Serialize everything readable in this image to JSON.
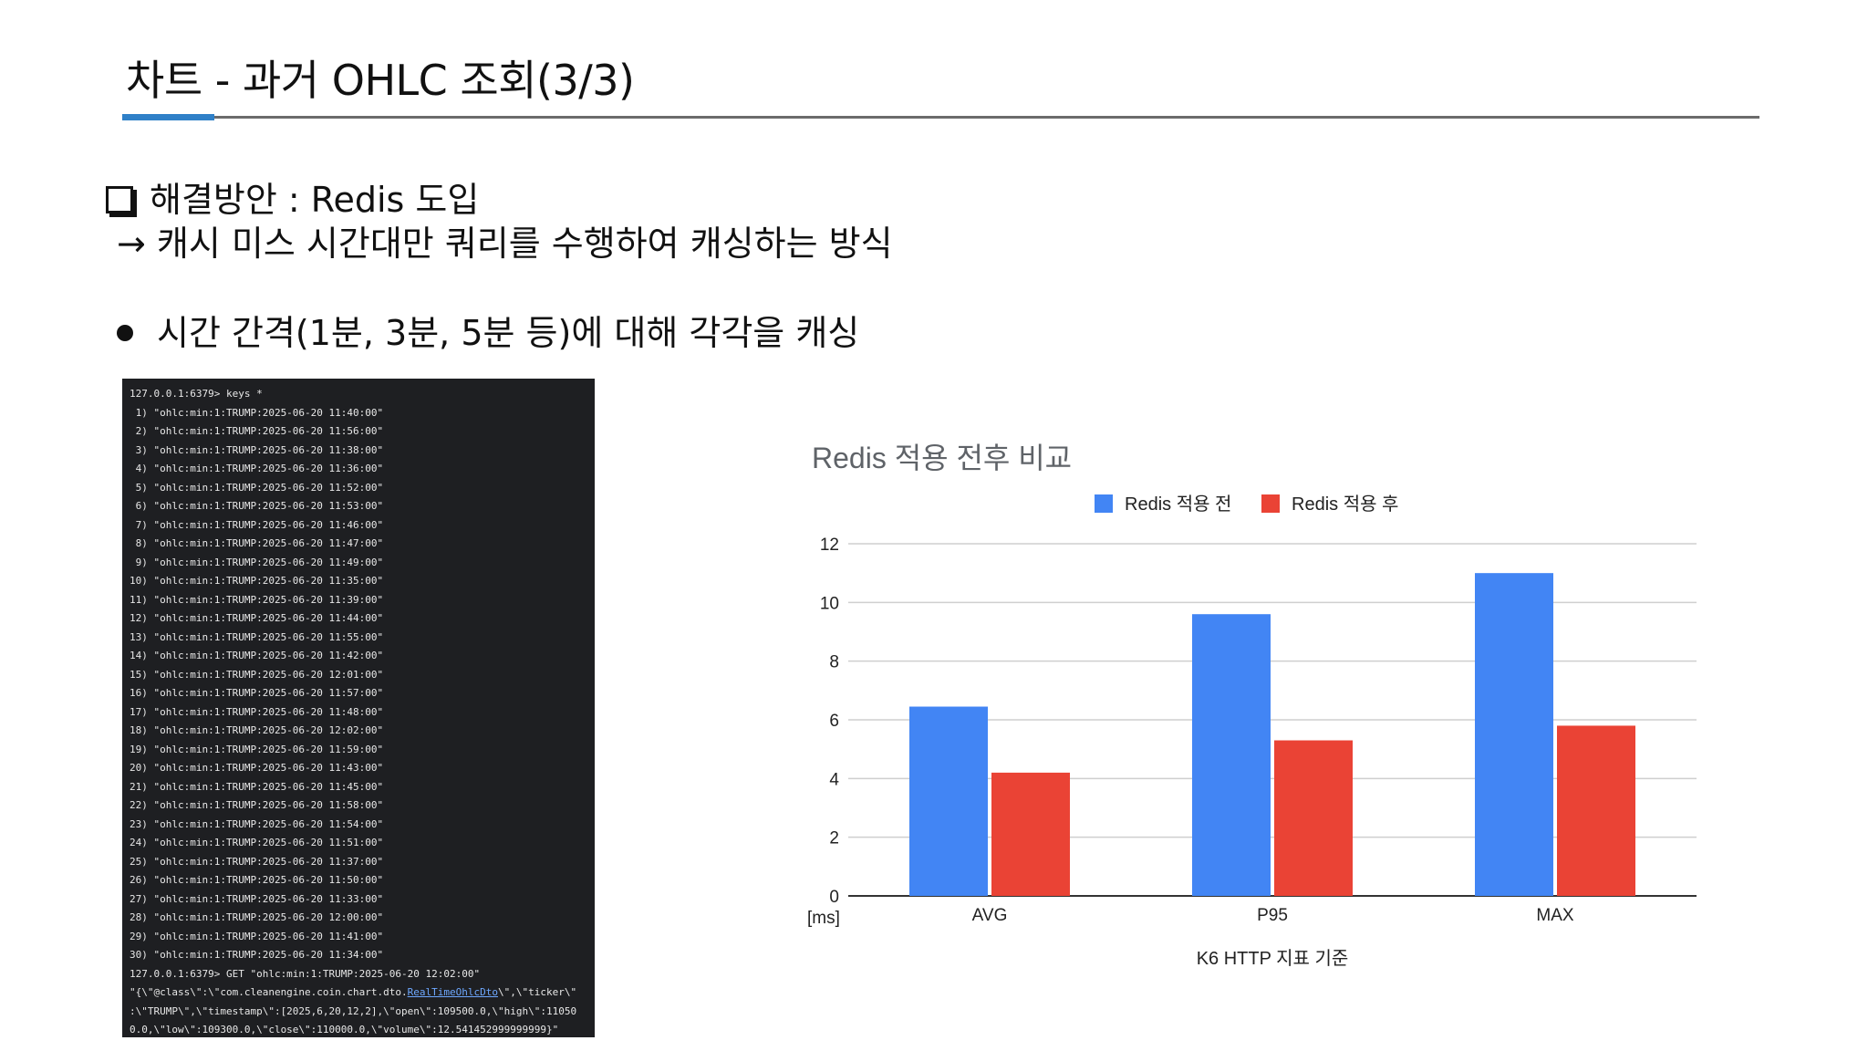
{
  "slide": {
    "title": "차트 - 과거 OHLC 조회(3/3)",
    "solution": "해결방안 : Redis 도입",
    "arrow_text": "→ 캐시 미스 시간대만 쿼리를 수행하여 캐싱하는 방식",
    "bullet": "시간 간격(1분, 3분, 5분 등)에 대해 각각을 캐싱",
    "accent_color": "#2f80c8",
    "rule_color": "#6b6b6b"
  },
  "terminal": {
    "prompt_cmd": "127.0.0.1:6379> keys *",
    "keys": [
      " 1) \"ohlc:min:1:TRUMP:2025-06-20 11:40:00\"",
      " 2) \"ohlc:min:1:TRUMP:2025-06-20 11:56:00\"",
      " 3) \"ohlc:min:1:TRUMP:2025-06-20 11:38:00\"",
      " 4) \"ohlc:min:1:TRUMP:2025-06-20 11:36:00\"",
      " 5) \"ohlc:min:1:TRUMP:2025-06-20 11:52:00\"",
      " 6) \"ohlc:min:1:TRUMP:2025-06-20 11:53:00\"",
      " 7) \"ohlc:min:1:TRUMP:2025-06-20 11:46:00\"",
      " 8) \"ohlc:min:1:TRUMP:2025-06-20 11:47:00\"",
      " 9) \"ohlc:min:1:TRUMP:2025-06-20 11:49:00\"",
      "10) \"ohlc:min:1:TRUMP:2025-06-20 11:35:00\"",
      "11) \"ohlc:min:1:TRUMP:2025-06-20 11:39:00\"",
      "12) \"ohlc:min:1:TRUMP:2025-06-20 11:44:00\"",
      "13) \"ohlc:min:1:TRUMP:2025-06-20 11:55:00\"",
      "14) \"ohlc:min:1:TRUMP:2025-06-20 11:42:00\"",
      "15) \"ohlc:min:1:TRUMP:2025-06-20 12:01:00\"",
      "16) \"ohlc:min:1:TRUMP:2025-06-20 11:57:00\"",
      "17) \"ohlc:min:1:TRUMP:2025-06-20 11:48:00\"",
      "18) \"ohlc:min:1:TRUMP:2025-06-20 12:02:00\"",
      "19) \"ohlc:min:1:TRUMP:2025-06-20 11:59:00\"",
      "20) \"ohlc:min:1:TRUMP:2025-06-20 11:43:00\"",
      "21) \"ohlc:min:1:TRUMP:2025-06-20 11:45:00\"",
      "22) \"ohlc:min:1:TRUMP:2025-06-20 11:58:00\"",
      "23) \"ohlc:min:1:TRUMP:2025-06-20 11:54:00\"",
      "24) \"ohlc:min:1:TRUMP:2025-06-20 11:51:00\"",
      "25) \"ohlc:min:1:TRUMP:2025-06-20 11:37:00\"",
      "26) \"ohlc:min:1:TRUMP:2025-06-20 11:50:00\"",
      "27) \"ohlc:min:1:TRUMP:2025-06-20 11:33:00\"",
      "28) \"ohlc:min:1:TRUMP:2025-06-20 12:00:00\"",
      "29) \"ohlc:min:1:TRUMP:2025-06-20 11:41:00\"",
      "30) \"ohlc:min:1:TRUMP:2025-06-20 11:34:00\""
    ],
    "get_cmd": "127.0.0.1:6379> GET \"ohlc:min:1:TRUMP:2025-06-20 12:02:00\"",
    "result_line1_pre": "\"{\\\"@class\\\":\\\"com.cleanengine.coin.chart.dto.",
    "result_line1_link": "RealTimeOhlcDto",
    "result_line1_post": "\\\",\\\"ticker\\\"",
    "result_line2": ":\\\"TRUMP\\\",\\\"timestamp\\\":[2025,6,20,12,2],\\\"open\\\":109500.0,\\\"high\\\":11050",
    "result_line3": "0.0,\\\"low\\\":109300.0,\\\"close\\\":110000.0,\\\"volume\\\":12.541452999999999}\""
  },
  "chart_data": {
    "type": "bar",
    "title": "Redis 적용 전후 비교",
    "categories": [
      "AVG",
      "P95",
      "MAX"
    ],
    "series": [
      {
        "name": "Redis 적용 전",
        "values": [
          6.45,
          9.6,
          11.0
        ],
        "color": "#4285f4"
      },
      {
        "name": "Redis 적용 후",
        "values": [
          4.2,
          5.3,
          5.8
        ],
        "color": "#ea4335"
      }
    ],
    "ylim": [
      0,
      12
    ],
    "yticks": [
      "0",
      "2",
      "4",
      "6",
      "8",
      "10",
      "12"
    ],
    "yunit": "[ms]",
    "xlabel": "K6 HTTP 지표 기준",
    "legend_position": "top",
    "grid": true
  }
}
